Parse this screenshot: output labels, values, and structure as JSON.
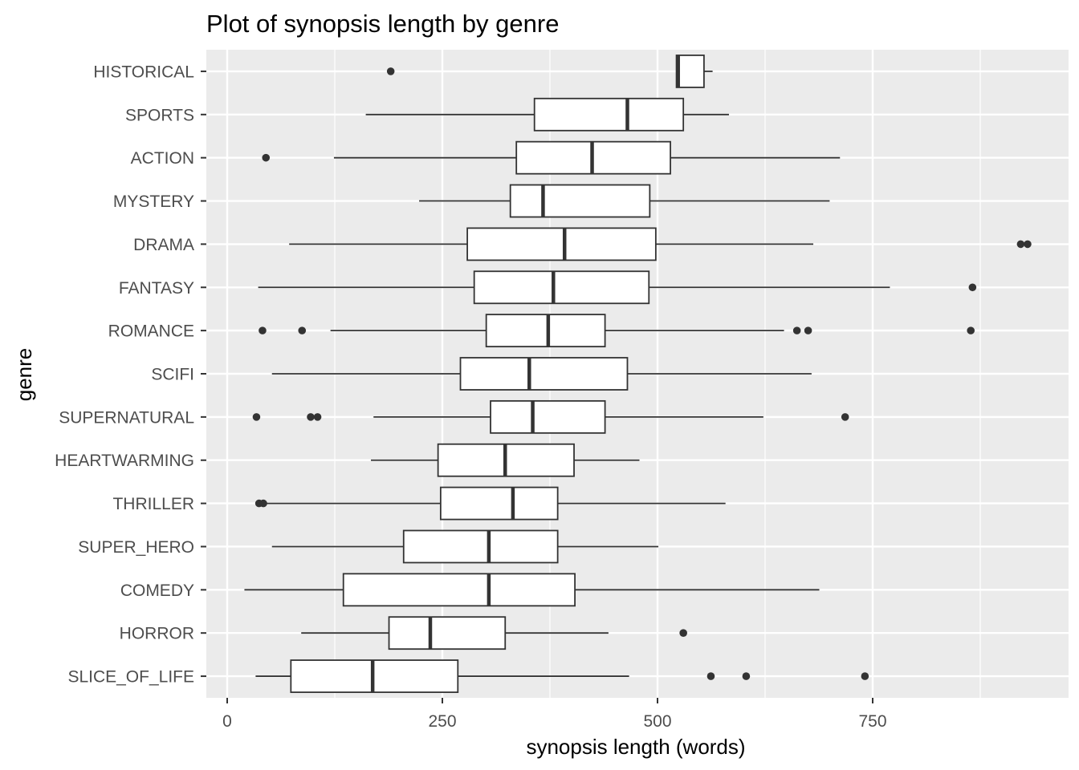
{
  "chart_data": {
    "type": "boxplot",
    "orientation": "horizontal",
    "title": "Plot of synopsis length by genre",
    "xlabel": "synopsis length (words)",
    "ylabel": "genre",
    "xlim": [
      -30,
      980
    ],
    "x_ticks": [
      0,
      250,
      500,
      750
    ],
    "x_tick_labels": [
      "0",
      "250",
      "500",
      "750"
    ],
    "grid": true,
    "legend": "none",
    "colors": {
      "panel": "#ebebeb",
      "grid": "#ffffff",
      "box_fill": "#ffffff",
      "box_stroke": "#333333",
      "outlier": "#333333",
      "tick_text": "#4d4d4d"
    },
    "categories": [
      "HISTORICAL",
      "SPORTS",
      "ACTION",
      "MYSTERY",
      "DRAMA",
      "FANTASY",
      "ROMANCE",
      "SCIFI",
      "SUPERNATURAL",
      "HEARTWARMING",
      "THRILLER",
      "SUPER_HERO",
      "COMEDY",
      "HORROR",
      "SLICE_OF_LIFE"
    ],
    "boxes": [
      {
        "genre": "HISTORICAL",
        "whisker_low": 522,
        "q1": 522,
        "median": 524,
        "q3": 554,
        "whisker_high": 564,
        "outliers": [
          190
        ]
      },
      {
        "genre": "SPORTS",
        "whisker_low": 161,
        "q1": 357,
        "median": 465,
        "q3": 530,
        "whisker_high": 583,
        "outliers": []
      },
      {
        "genre": "ACTION",
        "whisker_low": 124,
        "q1": 336,
        "median": 424,
        "q3": 515,
        "whisker_high": 712,
        "outliers": [
          45
        ]
      },
      {
        "genre": "MYSTERY",
        "whisker_low": 223,
        "q1": 329,
        "median": 367,
        "q3": 491,
        "whisker_high": 700,
        "outliers": []
      },
      {
        "genre": "DRAMA",
        "whisker_low": 72,
        "q1": 279,
        "median": 392,
        "q3": 498,
        "whisker_high": 681,
        "outliers": [
          922,
          930
        ]
      },
      {
        "genre": "FANTASY",
        "whisker_low": 36,
        "q1": 287,
        "median": 379,
        "q3": 490,
        "whisker_high": 770,
        "outliers": [
          866
        ]
      },
      {
        "genre": "ROMANCE",
        "whisker_low": 120,
        "q1": 301,
        "median": 373,
        "q3": 439,
        "whisker_high": 647,
        "outliers": [
          41,
          87,
          662,
          675,
          864
        ]
      },
      {
        "genre": "SCIFI",
        "whisker_low": 52,
        "q1": 271,
        "median": 351,
        "q3": 465,
        "whisker_high": 679,
        "outliers": []
      },
      {
        "genre": "SUPERNATURAL",
        "whisker_low": 170,
        "q1": 306,
        "median": 355,
        "q3": 439,
        "whisker_high": 623,
        "outliers": [
          34,
          97,
          105,
          718
        ]
      },
      {
        "genre": "HEARTWARMING",
        "whisker_low": 167,
        "q1": 245,
        "median": 323,
        "q3": 403,
        "whisker_high": 479,
        "outliers": []
      },
      {
        "genre": "THRILLER",
        "whisker_low": 42,
        "q1": 248,
        "median": 332,
        "q3": 384,
        "whisker_high": 579,
        "outliers": [
          37,
          42
        ]
      },
      {
        "genre": "SUPER_HERO",
        "whisker_low": 52,
        "q1": 205,
        "median": 304,
        "q3": 384,
        "whisker_high": 501,
        "outliers": []
      },
      {
        "genre": "COMEDY",
        "whisker_low": 20,
        "q1": 135,
        "median": 304,
        "q3": 404,
        "whisker_high": 688,
        "outliers": []
      },
      {
        "genre": "HORROR",
        "whisker_low": 86,
        "q1": 188,
        "median": 236,
        "q3": 323,
        "whisker_high": 443,
        "outliers": [
          530
        ]
      },
      {
        "genre": "SLICE_OF_LIFE",
        "whisker_low": 33,
        "q1": 74,
        "median": 169,
        "q3": 268,
        "whisker_high": 467,
        "outliers": [
          562,
          603,
          741
        ]
      }
    ]
  }
}
